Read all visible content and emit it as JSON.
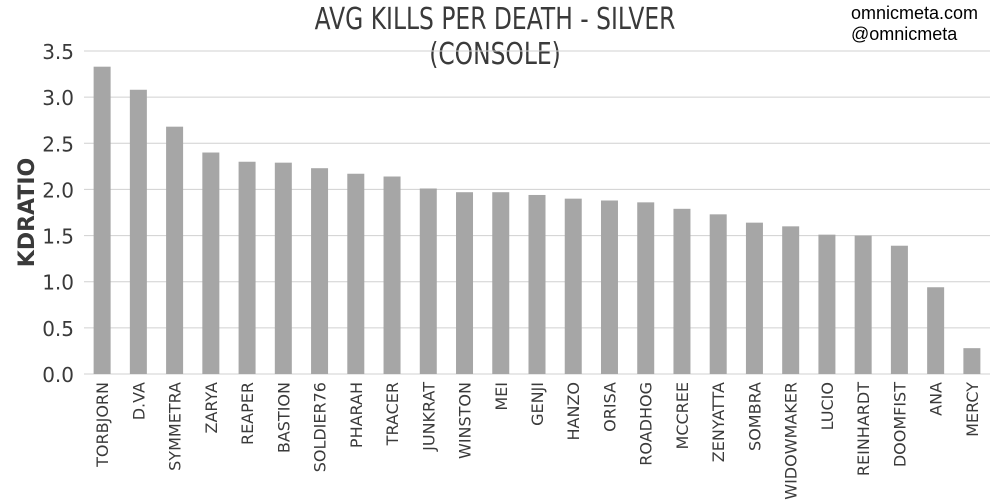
{
  "title": "AVG KILLS PER DEATH - SILVER (CONSOLE)",
  "credits": [
    "omnicmeta.com",
    "@omnicmeta"
  ],
  "chart_data": {
    "type": "bar",
    "ylabel": "KDRATIO",
    "xlabel": "",
    "ylim": [
      0,
      3.5
    ],
    "yticks": [
      "0.0",
      "0.5",
      "1.0",
      "1.5",
      "2.0",
      "2.5",
      "3.0",
      "3.5"
    ],
    "grid": true,
    "bar_color": "#a6a6a6",
    "grid_color": "#d0d0d0",
    "categories": [
      "TORBJORN",
      "D.VA",
      "SYMMETRA",
      "ZARYA",
      "REAPER",
      "BASTION",
      "SOLDIER76",
      "PHARAH",
      "TRACER",
      "JUNKRAT",
      "WINSTON",
      "MEI",
      "GENJI",
      "HANZO",
      "ORISA",
      "ROADHOG",
      "MCCREE",
      "ZENYATTA",
      "SOMBRA",
      "WIDOWMAKER",
      "LUCIO",
      "REINHARDT",
      "DOOMFIST",
      "ANA",
      "MERCY"
    ],
    "values": [
      3.33,
      3.08,
      2.68,
      2.4,
      2.3,
      2.29,
      2.23,
      2.17,
      2.14,
      2.01,
      1.97,
      1.97,
      1.94,
      1.9,
      1.88,
      1.86,
      1.79,
      1.73,
      1.64,
      1.6,
      1.51,
      1.5,
      1.39,
      0.94,
      0.28
    ]
  }
}
